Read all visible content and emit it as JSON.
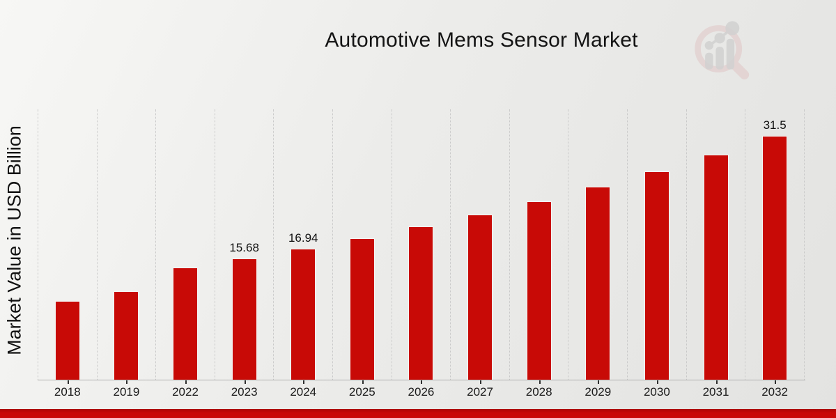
{
  "title": "Automotive Mems Sensor Market",
  "ylabel": "Market Value in USD Billion",
  "colors": {
    "bar": "#c80a06",
    "footer_stripe": "#c90707",
    "gridline": "#c7c7c7",
    "background_light": "#f7f7f5",
    "background_dark": "#e3e3e1"
  },
  "logo_icon": "magnifier-bar-chart-watermark-icon",
  "chart_data": {
    "type": "bar",
    "title": "Automotive Mems Sensor Market",
    "xlabel": "",
    "ylabel": "Market Value in USD Billion",
    "categories": [
      "2018",
      "2019",
      "2022",
      "2023",
      "2024",
      "2025",
      "2026",
      "2027",
      "2028",
      "2029",
      "2030",
      "2031",
      "2032"
    ],
    "values": [
      10.16,
      11.42,
      14.52,
      15.68,
      16.94,
      18.3,
      19.76,
      21.35,
      23.06,
      24.9,
      26.9,
      29.05,
      31.5
    ],
    "value_labels": [
      "",
      "",
      "",
      "15.68",
      "16.94",
      "",
      "",
      "",
      "",
      "",
      "",
      "",
      "31.5"
    ],
    "ylim": [
      0,
      34.9
    ],
    "grid": "vertical-dotted",
    "legend": "none",
    "bar_color": "#c80a06"
  }
}
